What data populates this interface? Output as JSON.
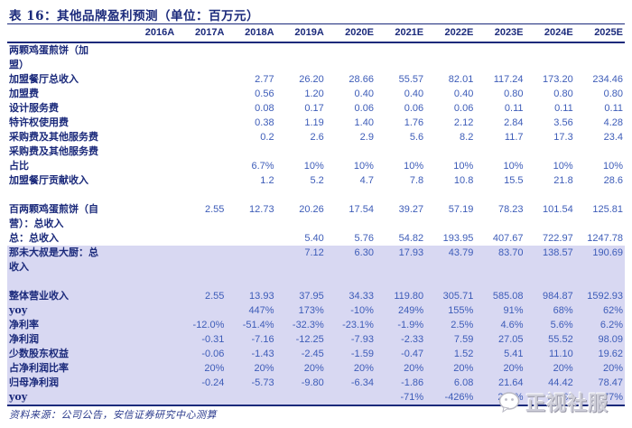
{
  "title": "表 16：其他品牌盈利预测（单位：百万元）",
  "columns": [
    "2016A",
    "2017A",
    "2018A",
    "2019A",
    "2020E",
    "2021E",
    "2022E",
    "2023E",
    "2024E",
    "2025E"
  ],
  "rows": [
    {
      "label": "两颗鸡蛋煎饼（加",
      "values": [
        "",
        "",
        "",
        "",
        "",
        "",
        "",
        "",
        "",
        ""
      ],
      "hl": false
    },
    {
      "label": "盟）",
      "values": [
        "",
        "",
        "",
        "",
        "",
        "",
        "",
        "",
        "",
        ""
      ],
      "hl": false
    },
    {
      "label": "加盟餐厅总收入",
      "values": [
        "",
        "",
        "2.77",
        "26.20",
        "28.66",
        "55.57",
        "82.01",
        "117.24",
        "173.20",
        "234.46"
      ],
      "hl": false
    },
    {
      "label": "加盟费",
      "values": [
        "",
        "",
        "0.56",
        "1.20",
        "0.40",
        "0.40",
        "0.40",
        "0.80",
        "0.80",
        "0.80"
      ],
      "hl": false
    },
    {
      "label": "设计服务费",
      "values": [
        "",
        "",
        "0.08",
        "0.17",
        "0.06",
        "0.06",
        "0.06",
        "0.11",
        "0.11",
        "0.11"
      ],
      "hl": false
    },
    {
      "label": "特许权使用费",
      "values": [
        "",
        "",
        "0.38",
        "1.19",
        "1.40",
        "1.76",
        "2.12",
        "2.84",
        "3.56",
        "4.28"
      ],
      "hl": false
    },
    {
      "label": "采购费及其他服务费",
      "values": [
        "",
        "",
        "0.2",
        "2.6",
        "2.9",
        "5.6",
        "8.2",
        "11.7",
        "17.3",
        "23.4"
      ],
      "hl": false
    },
    {
      "label": "采购费及其他服务费",
      "values": [
        "",
        "",
        "",
        "",
        "",
        "",
        "",
        "",
        "",
        ""
      ],
      "hl": false
    },
    {
      "label": "占比",
      "values": [
        "",
        "",
        "6.7%",
        "10%",
        "10%",
        "10%",
        "10%",
        "10%",
        "10%",
        "10%"
      ],
      "hl": false
    },
    {
      "label": "加盟餐厅贡献收入",
      "values": [
        "",
        "",
        "1.2",
        "5.2",
        "4.7",
        "7.8",
        "10.8",
        "15.5",
        "21.8",
        "28.6"
      ],
      "hl": false
    },
    {
      "label": "",
      "values": [
        "",
        "",
        "",
        "",
        "",
        "",
        "",
        "",
        "",
        ""
      ],
      "hl": false
    },
    {
      "label": "百两颗鸡蛋煎饼（自",
      "values": [
        "",
        "2.55",
        "12.73",
        "20.26",
        "17.54",
        "39.27",
        "57.19",
        "78.23",
        "101.54",
        "125.81"
      ],
      "hl": false
    },
    {
      "label": "营）：总收入",
      "values": [
        "",
        "",
        "",
        "",
        "",
        "",
        "",
        "",
        "",
        ""
      ],
      "hl": false
    },
    {
      "label": "总：总收入",
      "values": [
        "",
        "",
        "",
        "5.40",
        "5.76",
        "54.82",
        "193.95",
        "407.67",
        "722.97",
        "1247.78"
      ],
      "hl": false
    },
    {
      "label": "那未大叔是大厨：总",
      "values": [
        "",
        "",
        "",
        "7.12",
        "6.30",
        "17.93",
        "43.79",
        "83.70",
        "138.57",
        "190.69"
      ],
      "hl": true
    },
    {
      "label": "收入",
      "values": [
        "",
        "",
        "",
        "",
        "",
        "",
        "",
        "",
        "",
        ""
      ],
      "hl": true
    },
    {
      "label": "",
      "values": [
        "",
        "",
        "",
        "",
        "",
        "",
        "",
        "",
        "",
        ""
      ],
      "hl": true
    },
    {
      "label": "整体营业收入",
      "values": [
        "",
        "2.55",
        "13.93",
        "37.95",
        "34.33",
        "119.80",
        "305.71",
        "585.08",
        "984.87",
        "1592.93"
      ],
      "hl": true
    },
    {
      "label": "yoy",
      "values": [
        "",
        "",
        "447%",
        "173%",
        "-10%",
        "249%",
        "155%",
        "91%",
        "68%",
        "62%"
      ],
      "hl": true
    },
    {
      "label": "净利率",
      "values": [
        "",
        "-12.0%",
        "-51.4%",
        "-32.3%",
        "-23.1%",
        "-1.9%",
        "2.5%",
        "4.6%",
        "5.6%",
        "6.2%"
      ],
      "hl": true
    },
    {
      "label": "净利润",
      "values": [
        "",
        "-0.31",
        "-7.16",
        "-12.25",
        "-7.93",
        "-2.33",
        "7.59",
        "27.05",
        "55.52",
        "98.09"
      ],
      "hl": true
    },
    {
      "label": "少数股东权益",
      "values": [
        "",
        "-0.06",
        "-1.43",
        "-2.45",
        "-1.59",
        "-0.47",
        "1.52",
        "5.41",
        "11.10",
        "19.62"
      ],
      "hl": true
    },
    {
      "label": "占净利润比率",
      "values": [
        "",
        "20%",
        "20%",
        "20%",
        "20%",
        "20%",
        "20%",
        "20%",
        "20%",
        "20%"
      ],
      "hl": true
    },
    {
      "label": "归母净利润",
      "values": [
        "",
        "-0.24",
        "-5.73",
        "-9.80",
        "-6.34",
        "-1.86",
        "6.08",
        "21.64",
        "44.42",
        "78.47"
      ],
      "hl": true
    },
    {
      "label": "yoy",
      "values": [
        "",
        "",
        "",
        "",
        "",
        "-71%",
        "-426%",
        "256%",
        "105%",
        "77%"
      ],
      "hl": true,
      "last": true
    }
  ],
  "footer": "资料来源：公司公告，安信证券研究中心测算",
  "watermark": {
    "text": "正视社服",
    "icon": "wechat-icon"
  },
  "colors": {
    "navy": "#1b2a7b",
    "value_blue": "#3d5cb8",
    "highlight_band": "#d8d8f2",
    "watermark_gray": "#cfcfda"
  }
}
